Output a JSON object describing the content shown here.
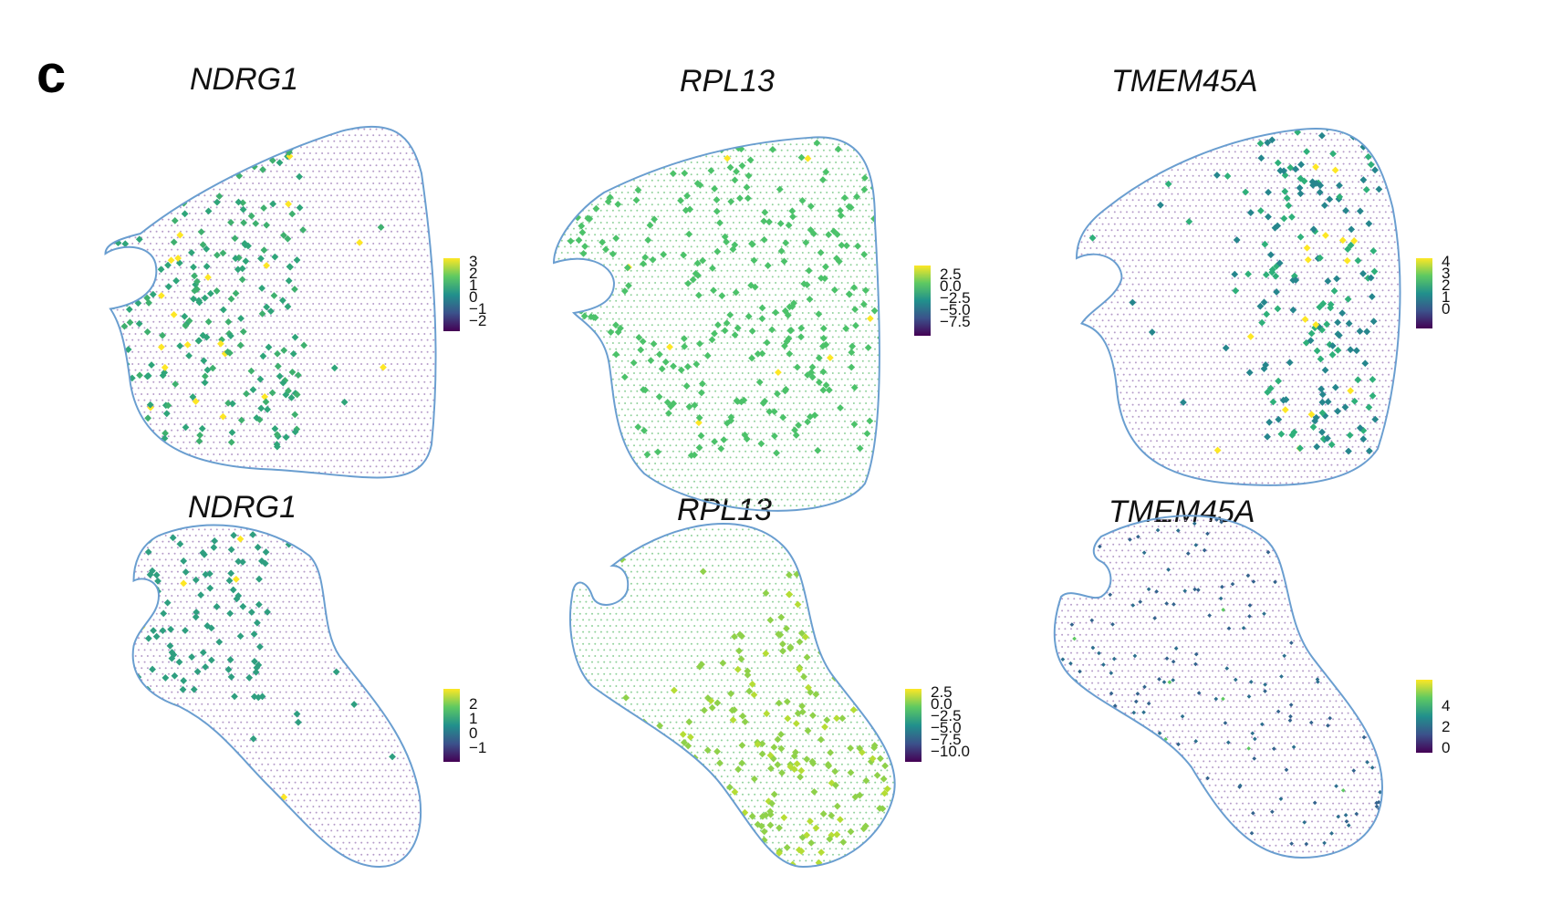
{
  "panel_letter": "c",
  "colors": {
    "outline": "#6a9ed0",
    "viridis": [
      "#440154",
      "#3b528b",
      "#21908c",
      "#5ec962",
      "#fde725"
    ]
  },
  "panels": [
    {
      "gene": "NDRG1",
      "ticks": [
        "3",
        "2",
        "1",
        "0",
        "−1",
        "−2"
      ]
    },
    {
      "gene": "RPL13",
      "ticks": [
        "2.5",
        "0.0",
        "−2.5",
        "−5.0",
        "−7.5"
      ]
    },
    {
      "gene": "TMEM45A",
      "ticks": [
        "4",
        "3",
        "2",
        "1",
        "0"
      ]
    },
    {
      "gene": "NDRG1",
      "ticks": [
        "2",
        "1",
        "0",
        "−1"
      ]
    },
    {
      "gene": "RPL13",
      "ticks": [
        "2.5",
        "0.0",
        "−2.5",
        "−5.0",
        "−7.5",
        "−10.0"
      ]
    },
    {
      "gene": "TMEM45A",
      "ticks": [
        "4",
        "2",
        "0"
      ]
    }
  ]
}
